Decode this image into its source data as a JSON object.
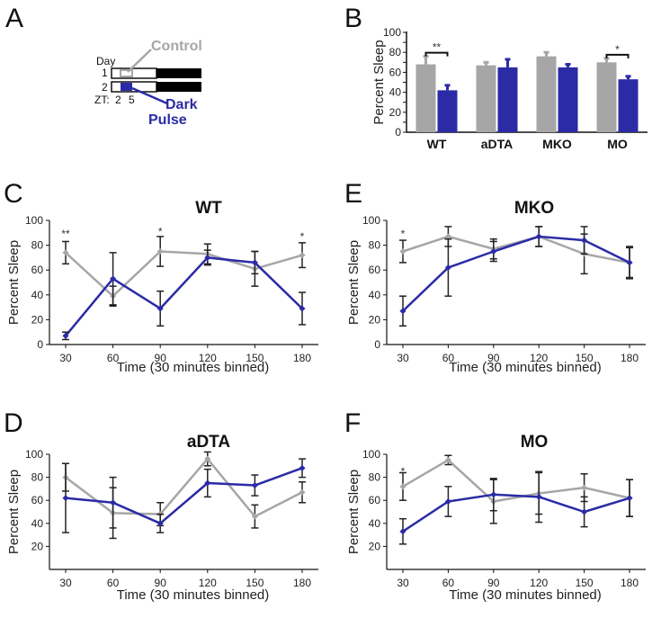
{
  "colors": {
    "control": "#a6a6a6",
    "dark_pulse": "#2b2ba6",
    "axis": "#111111",
    "error_bar": "#222222"
  },
  "panel_letters": [
    "A",
    "B",
    "C",
    "D",
    "E",
    "F"
  ],
  "schematic": {
    "day_label": "Day",
    "rows": [
      "1",
      "2"
    ],
    "zt_label": "ZT:",
    "zt_ticks": [
      "2",
      "5"
    ],
    "control_label": "Control",
    "pulse_label_1": "Dark",
    "pulse_label_2": "Pulse"
  },
  "chart_data": [
    {
      "id": "B",
      "type": "bar",
      "ylabel": "Percent Sleep",
      "ylim": [
        0,
        100
      ],
      "yticks": [
        0,
        10,
        20,
        30,
        40,
        50,
        60,
        70,
        80,
        90,
        100
      ],
      "categories": [
        "WT",
        "aDTA",
        "MKO",
        "MO"
      ],
      "series": [
        {
          "key": "control",
          "values": [
            68,
            67,
            76,
            70
          ],
          "errors": [
            8,
            3,
            4,
            4
          ]
        },
        {
          "key": "dark_pulse",
          "values": [
            42,
            65,
            65,
            53
          ],
          "errors": [
            5,
            8,
            3,
            3
          ]
        }
      ],
      "significance": [
        {
          "category": 0,
          "label": "**"
        },
        {
          "category": 3,
          "label": "*"
        }
      ]
    },
    {
      "id": "C",
      "type": "line",
      "title": "WT",
      "xlabel": "Time (30 minutes binned)",
      "ylabel": "Percent Sleep",
      "x": [
        30,
        60,
        90,
        120,
        150,
        180
      ],
      "ylim": [
        0,
        100
      ],
      "yticks": [
        0,
        20,
        40,
        60,
        80,
        100
      ],
      "series": [
        {
          "key": "control",
          "values": [
            74,
            39,
            75,
            73,
            61,
            72
          ],
          "errors": [
            9,
            8,
            12,
            8,
            14,
            10
          ]
        },
        {
          "key": "dark_pulse",
          "values": [
            7,
            53,
            29,
            70,
            66,
            29
          ],
          "errors": [
            3,
            21,
            14,
            6,
            9,
            13
          ]
        }
      ],
      "annotations": [
        {
          "x": 30,
          "y": 89,
          "label": "**"
        },
        {
          "x": 90,
          "y": 91,
          "label": "*"
        },
        {
          "x": 180,
          "y": 87,
          "label": "*"
        }
      ]
    },
    {
      "id": "D",
      "type": "line",
      "title": "aDTA",
      "xlabel": "Time (30 minutes binned)",
      "ylabel": "Percent Sleep",
      "x": [
        30,
        60,
        90,
        120,
        150,
        180
      ],
      "ylim": [
        0,
        100
      ],
      "yticks": [
        20,
        40,
        60,
        80,
        100
      ],
      "series": [
        {
          "key": "control",
          "values": [
            80,
            49,
            48,
            96,
            46,
            67
          ],
          "errors": [
            12,
            22,
            10,
            6,
            10,
            9
          ]
        },
        {
          "key": "dark_pulse",
          "values": [
            62,
            58,
            40,
            75,
            73,
            88
          ],
          "errors": [
            30,
            22,
            8,
            12,
            9,
            8
          ]
        }
      ],
      "annotations": []
    },
    {
      "id": "E",
      "type": "line",
      "title": "MKO",
      "xlabel": "Time (30 minutes binned)",
      "ylabel": "Percent Sleep",
      "x": [
        30,
        60,
        90,
        120,
        150,
        180
      ],
      "ylim": [
        0,
        100
      ],
      "yticks": [
        0,
        20,
        40,
        60,
        80,
        100
      ],
      "series": [
        {
          "key": "control",
          "values": [
            75,
            87,
            77,
            87,
            73,
            66
          ],
          "errors": [
            9,
            8,
            8,
            8,
            16,
            12
          ]
        },
        {
          "key": "dark_pulse",
          "values": [
            27,
            62,
            75,
            87,
            84,
            66
          ],
          "errors": [
            12,
            23,
            8,
            8,
            11,
            13
          ]
        }
      ],
      "annotations": [
        {
          "x": 30,
          "y": 89,
          "label": "*"
        }
      ]
    },
    {
      "id": "F",
      "type": "line",
      "title": "MO",
      "xlabel": "Time (30 minutes binned)",
      "ylabel": "Percent Sleep",
      "x": [
        30,
        60,
        90,
        120,
        150,
        180
      ],
      "ylim": [
        0,
        100
      ],
      "yticks": [
        20,
        40,
        60,
        80,
        100
      ],
      "series": [
        {
          "key": "control",
          "values": [
            72,
            95,
            59,
            66,
            71,
            62
          ],
          "errors": [
            12,
            4,
            19,
            18,
            12,
            16
          ]
        },
        {
          "key": "dark_pulse",
          "values": [
            33,
            59,
            65,
            63,
            50,
            62
          ],
          "errors": [
            11,
            13,
            14,
            22,
            13,
            16
          ]
        }
      ],
      "annotations": [
        {
          "x": 30,
          "y": 85,
          "label": "*"
        }
      ]
    }
  ]
}
